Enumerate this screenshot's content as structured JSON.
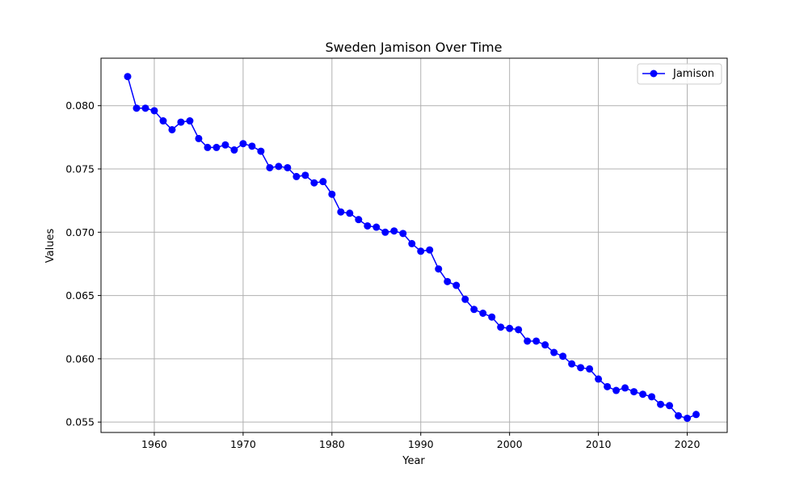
{
  "chart_data": {
    "type": "line",
    "title": "Sweden Jamison Over Time",
    "xlabel": "Year",
    "ylabel": "Values",
    "xlim": [
      1954,
      2024.5
    ],
    "ylim": [
      0.05418,
      0.08375
    ],
    "xticks": [
      1960,
      1970,
      1980,
      1990,
      2000,
      2010,
      2020
    ],
    "yticks": [
      0.055,
      0.06,
      0.065,
      0.07,
      0.075,
      0.08
    ],
    "ytick_labels": [
      "0.055",
      "0.060",
      "0.065",
      "0.070",
      "0.075",
      "0.080"
    ],
    "grid": true,
    "legend_position": "top-right",
    "series": [
      {
        "name": "Jamison",
        "color": "#0000ff",
        "marker": "circle",
        "x": [
          1957,
          1958,
          1959,
          1960,
          1961,
          1962,
          1963,
          1964,
          1965,
          1966,
          1967,
          1968,
          1969,
          1970,
          1971,
          1972,
          1973,
          1974,
          1975,
          1976,
          1977,
          1978,
          1979,
          1980,
          1981,
          1982,
          1983,
          1984,
          1985,
          1986,
          1987,
          1988,
          1989,
          1990,
          1991,
          1992,
          1993,
          1994,
          1995,
          1996,
          1997,
          1998,
          1999,
          2000,
          2001,
          2002,
          2003,
          2004,
          2005,
          2006,
          2007,
          2008,
          2009,
          2010,
          2011,
          2012,
          2013,
          2014,
          2015,
          2016,
          2017,
          2018,
          2019,
          2020,
          2021
        ],
        "y": [
          0.0823,
          0.0798,
          0.0798,
          0.0796,
          0.0788,
          0.0781,
          0.0787,
          0.0788,
          0.0774,
          0.0767,
          0.0767,
          0.0769,
          0.0765,
          0.077,
          0.0768,
          0.0764,
          0.0751,
          0.0752,
          0.0751,
          0.0744,
          0.0745,
          0.0739,
          0.074,
          0.073,
          0.0716,
          0.0715,
          0.071,
          0.0705,
          0.0704,
          0.07,
          0.0701,
          0.0699,
          0.0691,
          0.0685,
          0.0686,
          0.0671,
          0.0661,
          0.0658,
          0.0647,
          0.0639,
          0.0636,
          0.0633,
          0.0625,
          0.0624,
          0.0623,
          0.0614,
          0.0614,
          0.0611,
          0.0605,
          0.0602,
          0.0596,
          0.0593,
          0.0592,
          0.0584,
          0.0578,
          0.0575,
          0.0577,
          0.0574,
          0.0572,
          0.057,
          0.0564,
          0.0563,
          0.0555,
          0.0553,
          0.0556
        ]
      }
    ]
  }
}
